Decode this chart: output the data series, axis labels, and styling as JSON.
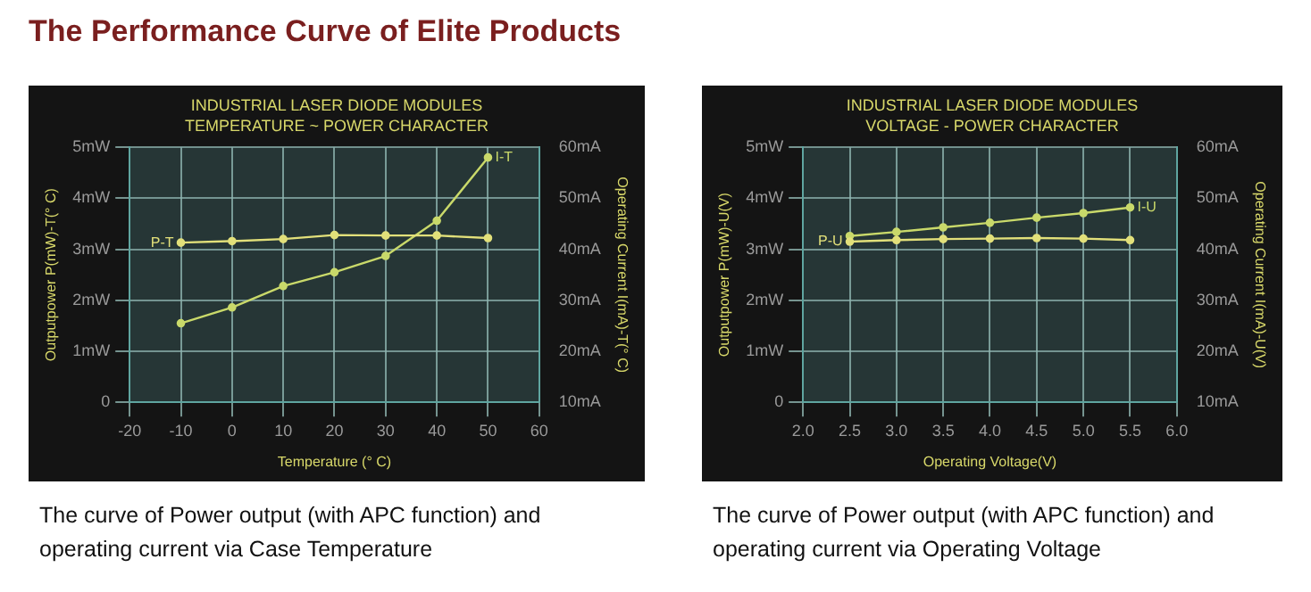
{
  "chart_data": [
    {
      "type": "line",
      "title": "INDUSTRIAL LASER DIODE MODULES",
      "subtitle": "TEMPERATURE ~ POWER CHARACTER",
      "xlabel": "Temperature (° C)",
      "ylabel": "Outputpower P(mW)-T(° C)",
      "y2label": "Operating Current I(mA)-T(° C)",
      "annotations": [
        "The Performance Curve of Elite Products",
        "The curve of Power output (with APC function) and operating current via Case Temperature"
      ],
      "x": [
        -10,
        0,
        10,
        20,
        30,
        40,
        50
      ],
      "xlim": [
        -20,
        60
      ],
      "xticks": [
        -20,
        -10,
        0,
        10,
        20,
        30,
        40,
        50,
        60
      ],
      "ylim": [
        0,
        5
      ],
      "yticks": [
        0,
        {
          "value": 1,
          "label": "1mW"
        },
        {
          "value": 2,
          "label": "2mW"
        },
        {
          "value": 3,
          "label": "3mW"
        },
        {
          "value": 4,
          "label": "4mW"
        },
        {
          "value": 5,
          "label": "5mW"
        }
      ],
      "y2lim": [
        10,
        60
      ],
      "y2ticks": [
        {
          "value": 10,
          "label": "10mA"
        },
        {
          "value": 20,
          "label": "20mA"
        },
        {
          "value": 30,
          "label": "30mA"
        },
        {
          "value": 40,
          "label": "40mA"
        },
        {
          "value": 50,
          "label": "50mA"
        },
        {
          "value": 60,
          "label": "60mA"
        }
      ],
      "grid": true,
      "marker": "circle",
      "series": [
        {
          "name": "P-T",
          "color": "#e2e07a",
          "values": [
            3.13,
            3.16,
            3.2,
            3.28,
            3.27,
            3.27,
            3.22
          ]
        },
        {
          "name": "I-T",
          "color": "#c9d96a",
          "axis": "y2",
          "values": [
            25.5,
            28.6,
            32.8,
            35.5,
            38.7,
            45.6,
            58
          ]
        }
      ]
    },
    {
      "type": "line",
      "title": "INDUSTRIAL LASER DIODE MODULES",
      "subtitle": "VOLTAGE - POWER CHARACTER",
      "xlabel": "Operating Voltage(V)",
      "ylabel": "Outputpower P(mW)-U(V)",
      "y2label": "Operating Current I(mA)-U(V)",
      "annotations": [
        "The curve of Power output (with APC function) and operating current via Operating Voltage"
      ],
      "x": [
        2.5,
        3,
        3.5,
        4,
        4.5,
        5,
        5.5
      ],
      "xlim": [
        2,
        6
      ],
      "xticks": [
        {
          "value": 2,
          "label": "2.0"
        },
        2.5,
        {
          "value": 3,
          "label": "3.0"
        },
        3.5,
        {
          "value": 4,
          "label": "4.0"
        },
        4.5,
        {
          "value": 5,
          "label": "5.0"
        },
        5.5,
        {
          "value": 6,
          "label": "6.0"
        }
      ],
      "ylim": [
        0,
        5
      ],
      "yticks": [
        0,
        {
          "value": 1,
          "label": "1mW"
        },
        {
          "value": 2,
          "label": "2mW"
        },
        {
          "value": 3,
          "label": "3mW"
        },
        {
          "value": 4,
          "label": "4mW"
        },
        {
          "value": 5,
          "label": "5mW"
        }
      ],
      "y2lim": [
        10,
        60
      ],
      "y2ticks": [
        {
          "value": 10,
          "label": "10mA"
        },
        {
          "value": 20,
          "label": "20mA"
        },
        {
          "value": 30,
          "label": "30mA"
        },
        {
          "value": 40,
          "label": "40mA"
        },
        {
          "value": 50,
          "label": "50mA"
        },
        {
          "value": 60,
          "label": "60mA"
        }
      ],
      "grid": true,
      "marker": "circle",
      "series": [
        {
          "name": "P-U",
          "color": "#e2e07a",
          "values": [
            3.15,
            3.18,
            3.2,
            3.21,
            3.22,
            3.21,
            3.18
          ]
        },
        {
          "name": "I-U",
          "color": "#c9d96a",
          "axis": "y2",
          "values": [
            42.6,
            43.4,
            44.3,
            45.2,
            46.2,
            47.1,
            48.2
          ]
        }
      ]
    }
  ]
}
